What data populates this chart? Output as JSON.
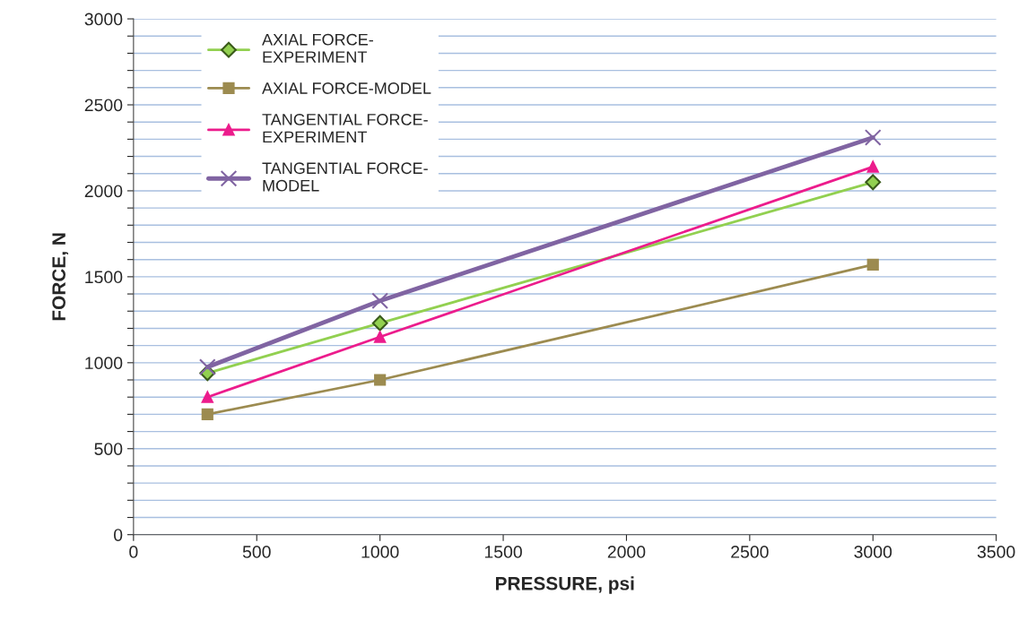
{
  "chart_data": {
    "type": "line",
    "xlabel": "PRESSURE, psi",
    "ylabel": "FORCE, N",
    "x": [
      300,
      1000,
      3000
    ],
    "series": [
      {
        "name": "AXIAL FORCE-\nEXPERIMENT",
        "color": "#92d050",
        "marker": "diamond",
        "values": [
          940,
          1230,
          2050
        ]
      },
      {
        "name": "AXIAL FORCE-MODEL",
        "color": "#9c8b50",
        "marker": "square",
        "values": [
          700,
          900,
          1570
        ]
      },
      {
        "name": "TANGENTIAL FORCE-\nEXPERIMENT",
        "color": "#ec1c8c",
        "marker": "triangle",
        "values": [
          800,
          1150,
          2140
        ]
      },
      {
        "name": "TANGENTIAL FORCE-\nMODEL",
        "color": "#8064a2",
        "marker": "cross",
        "values": [
          975,
          1360,
          2310
        ]
      }
    ],
    "xlim": [
      0,
      3500
    ],
    "xticks": [
      0,
      500,
      1000,
      1500,
      2000,
      2500,
      3000,
      3500
    ],
    "ylim": [
      0,
      3000
    ],
    "yticks": [
      0,
      {
        "value": 100,
        "label": null
      },
      {
        "value": 200,
        "label": null
      },
      {
        "value": 300,
        "label": null
      },
      {
        "value": 400,
        "label": null
      },
      500,
      {
        "value": 600,
        "label": null
      },
      {
        "value": 700,
        "label": null
      },
      {
        "value": 800,
        "label": null
      },
      {
        "value": 900,
        "label": null
      },
      1000,
      {
        "value": 1100,
        "label": null
      },
      {
        "value": 1200,
        "label": null
      },
      {
        "value": 1300,
        "label": null
      },
      {
        "value": 1400,
        "label": null
      },
      1500,
      {
        "value": 1600,
        "label": null
      },
      {
        "value": 1700,
        "label": null
      },
      {
        "value": 1800,
        "label": null
      },
      {
        "value": 1900,
        "label": null
      },
      2000,
      {
        "value": 2100,
        "label": null
      },
      {
        "value": 2200,
        "label": null
      },
      {
        "value": 2300,
        "label": null
      },
      {
        "value": 2400,
        "label": null
      },
      2500,
      {
        "value": 2600,
        "label": null
      },
      {
        "value": 2700,
        "label": null
      },
      {
        "value": 2800,
        "label": null
      },
      {
        "value": 2900,
        "label": null
      },
      3000
    ],
    "grid": "y",
    "legend": "top left",
    "line_style": "solid"
  }
}
